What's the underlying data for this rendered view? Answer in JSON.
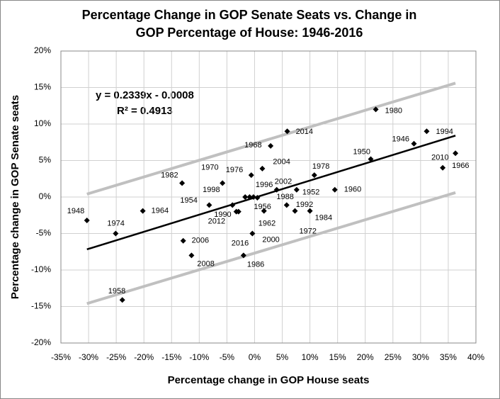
{
  "chart_data": {
    "type": "scatter",
    "title_lines": [
      "Percentage Change in GOP Senate Seats vs. Change in",
      "GOP Percentage of House: 1946-2016"
    ],
    "xlabel": "Percentage change in GOP House seats",
    "ylabel": "Percentage change in GOP Senate seats",
    "xlim": [
      -35,
      40
    ],
    "ylim": [
      -20,
      20
    ],
    "xticks": [
      {
        "value": -35,
        "label": "-35%"
      },
      {
        "value": -30,
        "label": "-30%"
      },
      {
        "value": -25,
        "label": "-25%"
      },
      {
        "value": -20,
        "label": "-20%"
      },
      {
        "value": -15,
        "label": "-15%"
      },
      {
        "value": -10,
        "label": "-10%"
      },
      {
        "value": -5,
        "label": "-5%"
      },
      {
        "value": 0,
        "label": "0%"
      },
      {
        "value": 5,
        "label": "5%"
      },
      {
        "value": 10,
        "label": "10%"
      },
      {
        "value": 15,
        "label": "15%"
      },
      {
        "value": 20,
        "label": "20%"
      },
      {
        "value": 25,
        "label": "25%"
      },
      {
        "value": 30,
        "label": "30%"
      },
      {
        "value": 35,
        "label": "35%"
      },
      {
        "value": 40,
        "label": "40%"
      }
    ],
    "yticks": [
      {
        "value": -20,
        "label": "-20%"
      },
      {
        "value": -15,
        "label": "-15%"
      },
      {
        "value": -10,
        "label": "-10%"
      },
      {
        "value": -5,
        "label": "-5%"
      },
      {
        "value": 0,
        "label": "0%"
      },
      {
        "value": 5,
        "label": "5%"
      },
      {
        "value": 10,
        "label": "10%"
      },
      {
        "value": 15,
        "label": "15%"
      },
      {
        "value": 20,
        "label": "20%"
      }
    ],
    "grid": true,
    "color": "#000000",
    "points": {
      "labels": [
        "1948",
        "1974",
        "1964",
        "1958",
        "1982",
        "2006",
        "2008",
        "1954",
        "1970",
        "1990",
        "2012",
        "2016",
        "2000",
        "1986",
        "1962",
        "1956",
        "1998",
        "1996",
        "1988",
        "1976",
        "1968",
        "2004",
        "2014",
        "2002",
        "1952",
        "1992",
        "1984",
        "1972",
        "1978",
        "1960",
        "1950",
        "1980",
        "1946",
        "1994",
        "2010",
        "1966"
      ],
      "x": [
        -30.3,
        -25.1,
        -20.2,
        -23.9,
        -13.1,
        -12.9,
        -11.4,
        -8.2,
        -5.8,
        -4.0,
        -3.3,
        -2.9,
        -0.4,
        -2.0,
        1.7,
        -0.9,
        -1.7,
        -0.2,
        0.5,
        -0.6,
        2.9,
        1.4,
        5.9,
        4.0,
        7.6,
        5.8,
        10.0,
        7.3,
        10.8,
        14.5,
        21.0,
        21.9,
        28.8,
        31.1,
        34.0,
        36.3
      ],
      "y": [
        -3.2,
        -5.0,
        -1.9,
        -14.1,
        1.9,
        -6.0,
        -8.0,
        -1.1,
        1.9,
        -1.1,
        -2.0,
        -2.0,
        -5.0,
        -8.0,
        -1.9,
        0.0,
        0.0,
        0.0,
        -0.1,
        3.0,
        7.0,
        3.9,
        9.0,
        1.0,
        1.0,
        -1.1,
        -1.9,
        -1.9,
        3.0,
        1.0,
        5.2,
        12.0,
        7.3,
        9.0,
        4.0,
        6.0
      ]
    },
    "trendline": {
      "x": [
        -30.3,
        36.3
      ],
      "y": [
        -7.17,
        8.41
      ],
      "color": "#000000"
    },
    "bands": [
      {
        "x": [
          -30.3,
          36.3
        ],
        "y": [
          0.4,
          15.6
        ],
        "color": "#c0c0c0"
      },
      {
        "x": [
          -30.3,
          36.3
        ],
        "y": [
          -14.6,
          0.6
        ],
        "color": "#c0c0c0"
      }
    ],
    "annotations": [
      "y = 0.2339x - 0.0008",
      "R² = 0.4913"
    ]
  }
}
